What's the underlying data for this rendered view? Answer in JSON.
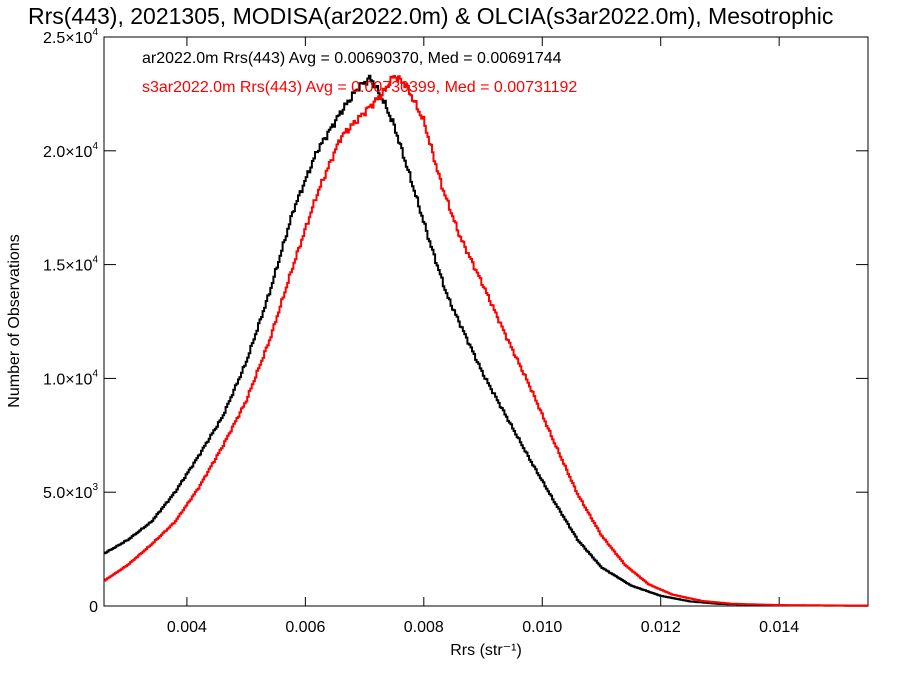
{
  "chart_data": {
    "type": "line",
    "title": "Rrs(443), 2021305, MODISA(ar2022.0m) & OLCIA(s3ar2022.0m), Mesotrophic",
    "xlabel": "Rrs (str⁻¹)",
    "ylabel": "Number of Observations",
    "xlim": [
      0.0026,
      0.0155
    ],
    "ylim": [
      0,
      25000
    ],
    "x_ticks": [
      0.004,
      0.006,
      0.008,
      0.01,
      0.012,
      0.014
    ],
    "x_tick_labels": [
      "0.004",
      "0.006",
      "0.008",
      "0.010",
      "0.012",
      "0.014"
    ],
    "y_ticks": [
      0,
      5000,
      10000,
      15000,
      20000,
      25000
    ],
    "y_tick_labels": [
      {
        "mant": "0",
        "exp": ""
      },
      {
        "mant": "5.0×10",
        "exp": "3"
      },
      {
        "mant": "1.0×10",
        "exp": "4"
      },
      {
        "mant": "1.5×10",
        "exp": "4"
      },
      {
        "mant": "2.0×10",
        "exp": "4"
      },
      {
        "mant": "2.5×10",
        "exp": "4"
      }
    ],
    "grid": false,
    "legend_placement": "top-left",
    "annotations": [
      {
        "text": "ar2022.0m Rrs(443) Avg = 0.00690370, Med = 0.00691744",
        "color": "#000000"
      },
      {
        "text": "s3ar2022.0m Rrs(443) Avg = 0.00730399, Med = 0.00731192",
        "color": "#ff0000"
      }
    ],
    "series": [
      {
        "color": "#000000",
        "style": "step",
        "points": [
          [
            0.0026,
            2300
          ],
          [
            0.003,
            2900
          ],
          [
            0.0034,
            3700
          ],
          [
            0.0038,
            5000
          ],
          [
            0.0042,
            6600
          ],
          [
            0.0046,
            8300
          ],
          [
            0.005,
            10700
          ],
          [
            0.0054,
            13800
          ],
          [
            0.0058,
            17400
          ],
          [
            0.0062,
            20000
          ],
          [
            0.0066,
            21700
          ],
          [
            0.0069,
            22800
          ],
          [
            0.0071,
            23200
          ],
          [
            0.0073,
            22300
          ],
          [
            0.0075,
            21100
          ],
          [
            0.0078,
            18600
          ],
          [
            0.0081,
            16000
          ],
          [
            0.0084,
            13600
          ],
          [
            0.0087,
            11900
          ],
          [
            0.009,
            10200
          ],
          [
            0.0094,
            8300
          ],
          [
            0.0098,
            6400
          ],
          [
            0.0102,
            4600
          ],
          [
            0.0106,
            2900
          ],
          [
            0.011,
            1700
          ],
          [
            0.0115,
            900
          ],
          [
            0.012,
            450
          ],
          [
            0.0125,
            200
          ],
          [
            0.013,
            90
          ],
          [
            0.014,
            30
          ],
          [
            0.0155,
            10
          ]
        ]
      },
      {
        "color": "#ff0000",
        "style": "step",
        "points": [
          [
            0.0026,
            1100
          ],
          [
            0.003,
            1800
          ],
          [
            0.0034,
            2700
          ],
          [
            0.0038,
            3700
          ],
          [
            0.0042,
            5200
          ],
          [
            0.0046,
            7000
          ],
          [
            0.005,
            9000
          ],
          [
            0.0054,
            11700
          ],
          [
            0.0058,
            15000
          ],
          [
            0.0062,
            18100
          ],
          [
            0.0066,
            20600
          ],
          [
            0.007,
            21700
          ],
          [
            0.0073,
            22500
          ],
          [
            0.0075,
            23300
          ],
          [
            0.0077,
            22900
          ],
          [
            0.008,
            21300
          ],
          [
            0.0083,
            18500
          ],
          [
            0.0086,
            16300
          ],
          [
            0.009,
            14100
          ],
          [
            0.0094,
            11800
          ],
          [
            0.0098,
            9600
          ],
          [
            0.0102,
            7200
          ],
          [
            0.0106,
            4900
          ],
          [
            0.011,
            3100
          ],
          [
            0.0114,
            1800
          ],
          [
            0.0118,
            950
          ],
          [
            0.0122,
            500
          ],
          [
            0.0127,
            220
          ],
          [
            0.0132,
            100
          ],
          [
            0.014,
            40
          ],
          [
            0.0155,
            15
          ]
        ]
      }
    ]
  }
}
